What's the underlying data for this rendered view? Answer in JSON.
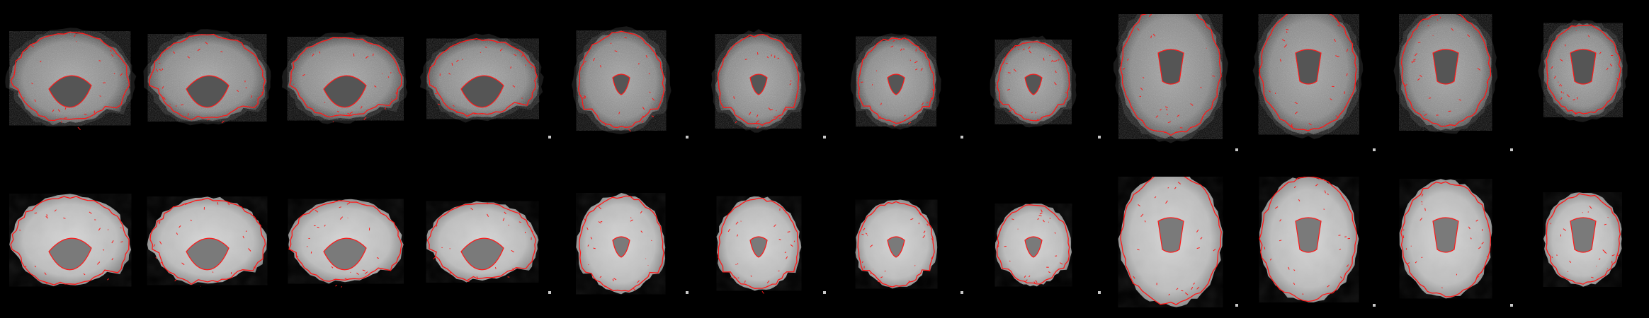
{
  "figure": {
    "rows": [
      {
        "name": "functional-registration-row",
        "image_type": "functional EPI (grainy)",
        "overlay_color": "#ff1a1a",
        "views": [
          "sagittal",
          "sagittal",
          "sagittal",
          "sagittal",
          "coronal",
          "coronal",
          "coronal",
          "coronal",
          "axial",
          "axial",
          "axial",
          "axial"
        ]
      },
      {
        "name": "anatomical-template-row",
        "image_type": "T1 template (smooth)",
        "overlay_color": "#ff1a1a",
        "views": [
          "sagittal",
          "sagittal",
          "sagittal",
          "sagittal",
          "coronal",
          "coronal",
          "coronal",
          "coronal",
          "axial",
          "axial",
          "axial",
          "axial"
        ]
      }
    ],
    "background_color": "#000000"
  }
}
